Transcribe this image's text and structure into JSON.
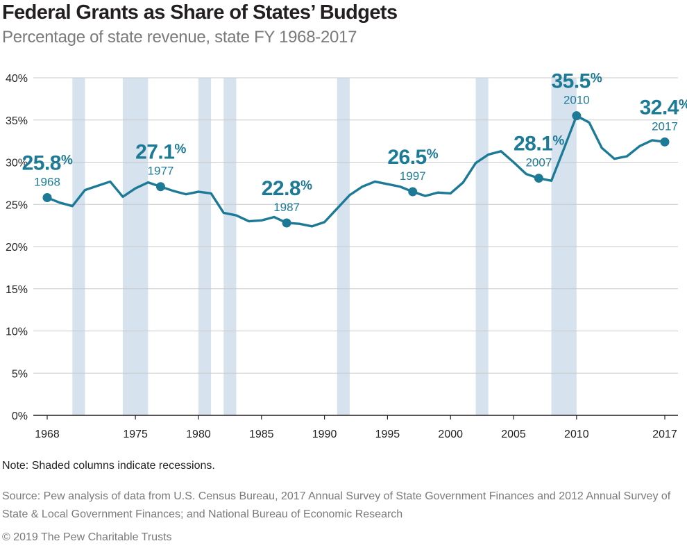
{
  "title": "Federal Grants as Share of States’ Budgets",
  "subtitle": "Percentage of state revenue, state FY 1968-2017",
  "note": "Note: Shaded columns indicate recessions.",
  "source": "Source: Pew analysis of data from U.S. Census Bureau, 2017 Annual Survey of State Government Finances and 2012 Annual Survey of State & Local Government Finances; and National Bureau of Economic Research",
  "copyright": "© 2019 The Pew Charitable Trusts",
  "colors": {
    "line": "#1c7a96",
    "recession": "#d6e3ef",
    "grid": "#c8c8c8",
    "axis": "#231f20"
  },
  "chart_data": {
    "type": "line",
    "title": "Federal Grants as Share of States’ Budgets",
    "subtitle": "Percentage of state revenue, state FY 1968-2017",
    "xlim": [
      1968,
      2017
    ],
    "ylim": [
      0,
      40
    ],
    "y_ticks": [
      0,
      5,
      10,
      15,
      20,
      25,
      30,
      35,
      40
    ],
    "y_tick_labels": [
      "0%",
      "5%",
      "10%",
      "15%",
      "20%",
      "25%",
      "30%",
      "35%",
      "40%"
    ],
    "x_ticks": [
      1968,
      1975,
      1980,
      1985,
      1990,
      1995,
      2000,
      2005,
      2010,
      2017
    ],
    "x_tick_labels": [
      "1968",
      "1975",
      "1980",
      "1985",
      "1990",
      "1995",
      "2000",
      "2005",
      "2010",
      "2017"
    ],
    "grid": true,
    "series": [
      {
        "x": [
          1968,
          1969,
          1970,
          1971,
          1972,
          1973,
          1974,
          1975,
          1976,
          1977,
          1978,
          1979,
          1980,
          1981,
          1982,
          1983,
          1984,
          1985,
          1986,
          1987,
          1988,
          1989,
          1990,
          1991,
          1992,
          1993,
          1994,
          1995,
          1996,
          1997,
          1998,
          1999,
          2000,
          2001,
          2002,
          2003,
          2004,
          2005,
          2006,
          2007,
          2008,
          2009,
          2010,
          2011,
          2012,
          2013,
          2014,
          2015,
          2016,
          2017
        ],
        "values": [
          25.8,
          25.2,
          24.8,
          26.7,
          27.2,
          27.7,
          25.9,
          26.9,
          27.6,
          27.1,
          26.6,
          26.2,
          26.5,
          26.3,
          24.0,
          23.7,
          23.0,
          23.1,
          23.5,
          22.8,
          22.7,
          22.4,
          22.9,
          24.5,
          26.1,
          27.1,
          27.7,
          27.4,
          27.1,
          26.5,
          26.0,
          26.4,
          26.3,
          27.6,
          29.9,
          30.9,
          31.3,
          30.0,
          28.6,
          28.1,
          27.8,
          31.6,
          35.5,
          34.7,
          31.7,
          30.4,
          30.7,
          31.9,
          32.6,
          32.4
        ]
      }
    ],
    "recessions": [
      [
        1970,
        1971
      ],
      [
        1974,
        1976
      ],
      [
        1980,
        1981
      ],
      [
        1982,
        1983
      ],
      [
        1991,
        1992
      ],
      [
        2002,
        2003
      ],
      [
        2008,
        2010
      ]
    ],
    "annotations": [
      {
        "x": 1968,
        "y": 25.8,
        "value": "25.8",
        "pct": "%",
        "year": "1968"
      },
      {
        "x": 1977,
        "y": 27.1,
        "value": "27.1",
        "pct": "%",
        "year": "1977"
      },
      {
        "x": 1987,
        "y": 22.8,
        "value": "22.8",
        "pct": "%",
        "year": "1987"
      },
      {
        "x": 1997,
        "y": 26.5,
        "value": "26.5",
        "pct": "%",
        "year": "1997"
      },
      {
        "x": 2007,
        "y": 28.1,
        "value": "28.1",
        "pct": "%",
        "year": "2007"
      },
      {
        "x": 2010,
        "y": 35.5,
        "value": "35.5",
        "pct": "%",
        "year": "2010"
      },
      {
        "x": 2017,
        "y": 32.4,
        "value": "32.4",
        "pct": "%",
        "year": "2017"
      }
    ]
  }
}
